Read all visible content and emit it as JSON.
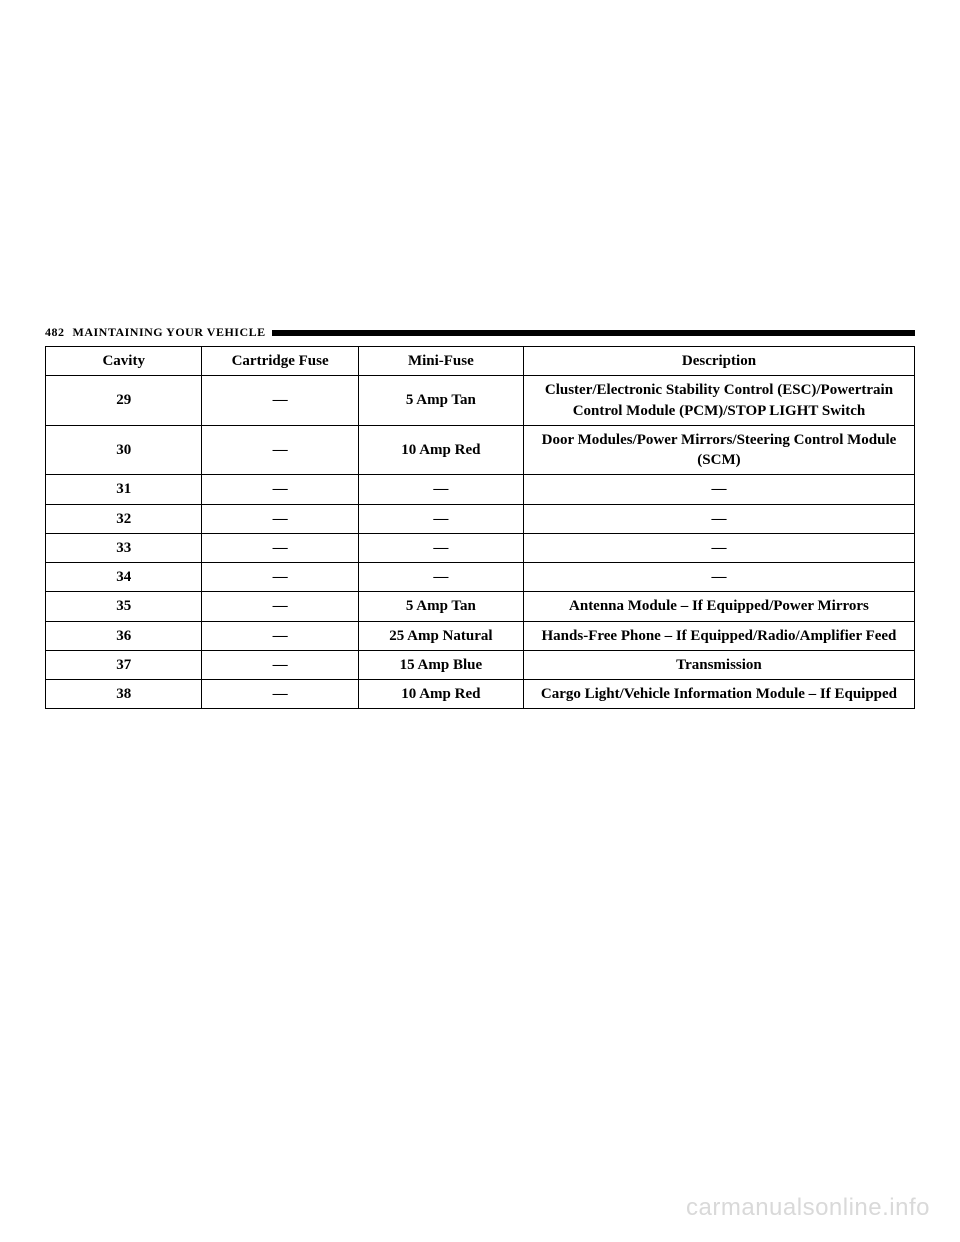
{
  "header": {
    "page_number": "482",
    "section_title": "MAINTAINING YOUR VEHICLE"
  },
  "table": {
    "columns": [
      "Cavity",
      "Cartridge Fuse",
      "Mini-Fuse",
      "Description"
    ],
    "rows": [
      [
        "29",
        "—",
        "5 Amp Tan",
        "Cluster/Electronic Stability Control (ESC)/Powertrain Control Module (PCM)/STOP LIGHT Switch"
      ],
      [
        "30",
        "—",
        "10 Amp Red",
        "Door Modules/Power Mirrors/Steering Control Module (SCM)"
      ],
      [
        "31",
        "—",
        "—",
        "—"
      ],
      [
        "32",
        "—",
        "—",
        "—"
      ],
      [
        "33",
        "—",
        "—",
        "—"
      ],
      [
        "34",
        "—",
        "—",
        "—"
      ],
      [
        "35",
        "—",
        "5 Amp Tan",
        "Antenna Module – If Equipped/Power Mirrors"
      ],
      [
        "36",
        "—",
        "25 Amp Natural",
        "Hands-Free Phone – If Equipped/Radio/Amplifier Feed"
      ],
      [
        "37",
        "—",
        "15 Amp Blue",
        "Transmission"
      ],
      [
        "38",
        "—",
        "10 Amp Red",
        "Cargo Light/Vehicle Information Module – If Equipped"
      ]
    ]
  },
  "watermark": "carmanualsonline.info"
}
